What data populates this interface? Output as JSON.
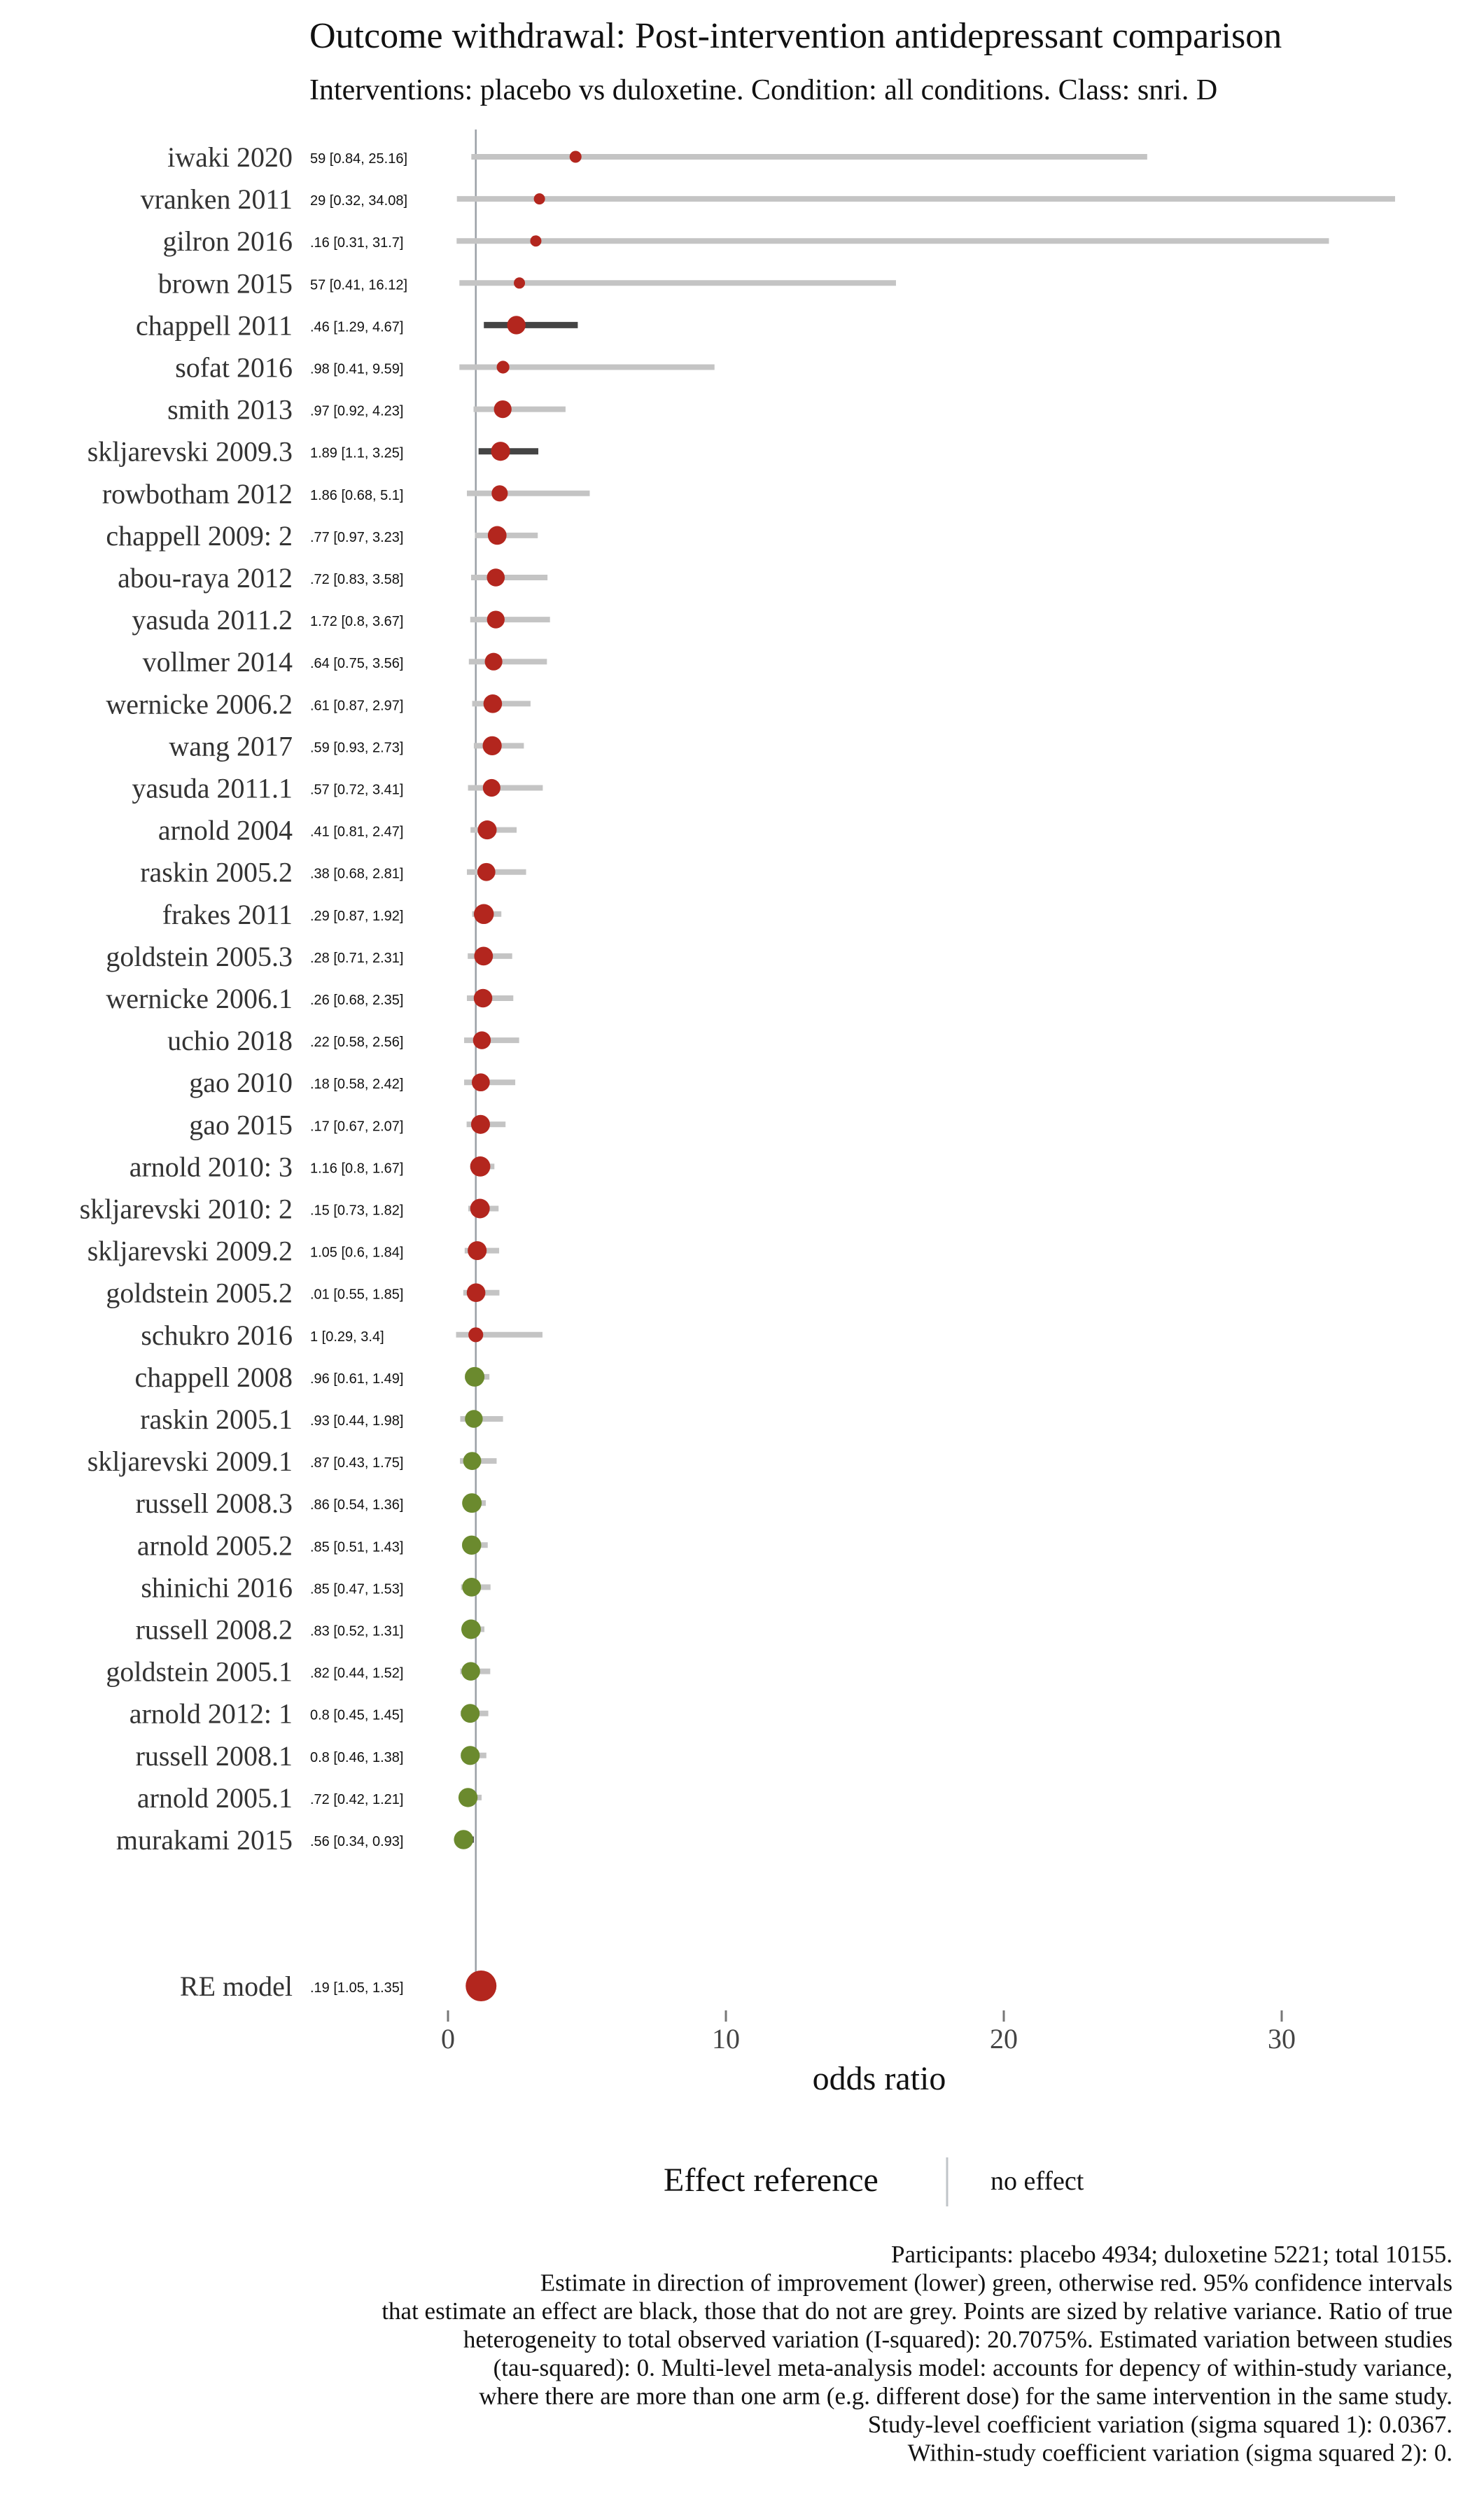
{
  "chart_data": {
    "type": "forest",
    "title": "Outcome withdrawal: Post-intervention antidepressant comparison",
    "subtitle": "Interventions: placebo vs duloxetine. Condition: all conditions. Class: snri. D",
    "xlabel": "odds ratio",
    "xlim": [
      -1,
      35
    ],
    "xticks": [
      0,
      10,
      20,
      30
    ],
    "reference_line": 1,
    "colors": {
      "harm": "#b3261e",
      "benefit": "#6b8a2e",
      "ci_significant": "#444444",
      "ci_nonsignificant": "#c4c4c4",
      "axis": "#777777",
      "reference": "#9aa0a6"
    },
    "studies": [
      {
        "study": "iwaki 2020",
        "or": 4.59,
        "lo": 0.84,
        "hi": 25.16,
        "label": "59 [0.84, 25.16]"
      },
      {
        "study": "vranken 2011",
        "or": 3.29,
        "lo": 0.32,
        "hi": 34.08,
        "label": "29 [0.32, 34.08]"
      },
      {
        "study": "gilron 2016",
        "or": 3.16,
        "lo": 0.31,
        "hi": 31.7,
        "label": ".16 [0.31, 31.7]"
      },
      {
        "study": "brown 2015",
        "or": 2.57,
        "lo": 0.41,
        "hi": 16.12,
        "label": "57 [0.41, 16.12]"
      },
      {
        "study": "chappell 2011",
        "or": 2.46,
        "lo": 1.29,
        "hi": 4.67,
        "label": ".46 [1.29, 4.67]"
      },
      {
        "study": "sofat 2016",
        "or": 1.98,
        "lo": 0.41,
        "hi": 9.59,
        "label": ".98 [0.41, 9.59]"
      },
      {
        "study": "smith 2013",
        "or": 1.97,
        "lo": 0.92,
        "hi": 4.23,
        "label": ".97 [0.92, 4.23]"
      },
      {
        "study": "skljarevski 2009.3",
        "or": 1.89,
        "lo": 1.1,
        "hi": 3.25,
        "label": "1.89 [1.1, 3.25]"
      },
      {
        "study": "rowbotham 2012",
        "or": 1.86,
        "lo": 0.68,
        "hi": 5.1,
        "label": "1.86 [0.68, 5.1]"
      },
      {
        "study": "chappell 2009: 2",
        "or": 1.77,
        "lo": 0.97,
        "hi": 3.23,
        "label": ".77 [0.97, 3.23]"
      },
      {
        "study": "abou-raya 2012",
        "or": 1.72,
        "lo": 0.83,
        "hi": 3.58,
        "label": ".72 [0.83, 3.58]"
      },
      {
        "study": "yasuda 2011.2",
        "or": 1.72,
        "lo": 0.8,
        "hi": 3.67,
        "label": "1.72 [0.8, 3.67]"
      },
      {
        "study": "vollmer 2014",
        "or": 1.64,
        "lo": 0.75,
        "hi": 3.56,
        "label": ".64 [0.75, 3.56]"
      },
      {
        "study": "wernicke 2006.2",
        "or": 1.61,
        "lo": 0.87,
        "hi": 2.97,
        "label": ".61 [0.87, 2.97]"
      },
      {
        "study": "wang 2017",
        "or": 1.59,
        "lo": 0.93,
        "hi": 2.73,
        "label": ".59 [0.93, 2.73]"
      },
      {
        "study": "yasuda 2011.1",
        "or": 1.57,
        "lo": 0.72,
        "hi": 3.41,
        "label": ".57 [0.72, 3.41]"
      },
      {
        "study": "arnold 2004",
        "or": 1.41,
        "lo": 0.81,
        "hi": 2.47,
        "label": ".41 [0.81, 2.47]"
      },
      {
        "study": "raskin 2005.2",
        "or": 1.38,
        "lo": 0.68,
        "hi": 2.81,
        "label": ".38 [0.68, 2.81]"
      },
      {
        "study": "frakes 2011",
        "or": 1.29,
        "lo": 0.87,
        "hi": 1.92,
        "label": ".29 [0.87, 1.92]"
      },
      {
        "study": "goldstein 2005.3",
        "or": 1.28,
        "lo": 0.71,
        "hi": 2.31,
        "label": ".28 [0.71, 2.31]"
      },
      {
        "study": "wernicke 2006.1",
        "or": 1.26,
        "lo": 0.68,
        "hi": 2.35,
        "label": ".26 [0.68, 2.35]"
      },
      {
        "study": "uchio 2018",
        "or": 1.22,
        "lo": 0.58,
        "hi": 2.56,
        "label": ".22 [0.58, 2.56]"
      },
      {
        "study": "gao 2010",
        "or": 1.18,
        "lo": 0.58,
        "hi": 2.42,
        "label": ".18 [0.58, 2.42]"
      },
      {
        "study": "gao 2015",
        "or": 1.17,
        "lo": 0.67,
        "hi": 2.07,
        "label": ".17 [0.67, 2.07]"
      },
      {
        "study": "arnold 2010: 3",
        "or": 1.16,
        "lo": 0.8,
        "hi": 1.67,
        "label": "1.16 [0.8, 1.67]"
      },
      {
        "study": "skljarevski 2010: 2",
        "or": 1.15,
        "lo": 0.73,
        "hi": 1.82,
        "label": ".15 [0.73, 1.82]"
      },
      {
        "study": "skljarevski 2009.2",
        "or": 1.05,
        "lo": 0.6,
        "hi": 1.84,
        "label": "1.05 [0.6, 1.84]"
      },
      {
        "study": "goldstein 2005.2",
        "or": 1.01,
        "lo": 0.55,
        "hi": 1.85,
        "label": ".01 [0.55, 1.85]"
      },
      {
        "study": "schukro 2016",
        "or": 1,
        "lo": 0.29,
        "hi": 3.4,
        "label": "1 [0.29, 3.4]"
      },
      {
        "study": "chappell 2008",
        "or": 0.96,
        "lo": 0.61,
        "hi": 1.49,
        "label": ".96 [0.61, 1.49]"
      },
      {
        "study": "raskin 2005.1",
        "or": 0.93,
        "lo": 0.44,
        "hi": 1.98,
        "label": ".93 [0.44, 1.98]"
      },
      {
        "study": "skljarevski 2009.1",
        "or": 0.87,
        "lo": 0.43,
        "hi": 1.75,
        "label": ".87 [0.43, 1.75]"
      },
      {
        "study": "russell 2008.3",
        "or": 0.86,
        "lo": 0.54,
        "hi": 1.36,
        "label": ".86 [0.54, 1.36]"
      },
      {
        "study": "arnold 2005.2",
        "or": 0.85,
        "lo": 0.51,
        "hi": 1.43,
        "label": ".85 [0.51, 1.43]"
      },
      {
        "study": "shinichi 2016",
        "or": 0.85,
        "lo": 0.47,
        "hi": 1.53,
        "label": ".85 [0.47, 1.53]"
      },
      {
        "study": "russell 2008.2",
        "or": 0.83,
        "lo": 0.52,
        "hi": 1.31,
        "label": ".83 [0.52, 1.31]"
      },
      {
        "study": "goldstein 2005.1",
        "or": 0.82,
        "lo": 0.44,
        "hi": 1.52,
        "label": ".82 [0.44, 1.52]"
      },
      {
        "study": "arnold 2012: 1",
        "or": 0.8,
        "lo": 0.45,
        "hi": 1.45,
        "label": "0.8 [0.45, 1.45]"
      },
      {
        "study": "russell 2008.1",
        "or": 0.8,
        "lo": 0.46,
        "hi": 1.38,
        "label": "0.8 [0.46, 1.38]"
      },
      {
        "study": "arnold 2005.1",
        "or": 0.72,
        "lo": 0.42,
        "hi": 1.21,
        "label": ".72 [0.42, 1.21]"
      },
      {
        "study": "murakami 2015",
        "or": 0.56,
        "lo": 0.34,
        "hi": 0.93,
        "label": ".56 [0.34, 0.93]"
      }
    ],
    "summary": {
      "study": "RE model",
      "or": 1.19,
      "lo": 1.05,
      "hi": 1.35,
      "label": ".19 [1.05, 1.35]"
    },
    "legend": {
      "title": "Effect reference",
      "item": "no effect",
      "placement": "bottom-center"
    },
    "caption": [
      "Participants: placebo 4934; duloxetine 5221; total 10155.",
      "Estimate in direction of improvement (lower) green, otherwise red. 95% confidence intervals",
      "that estimate an effect are black, those that do not are grey. Points are sized by relative variance. Ratio of true",
      "heterogeneity to total observed variation (I-squared): 20.7075%. Estimated variation between studies",
      "(tau-squared): 0. Multi-level meta-analysis model: accounts for depency of within-study variance,",
      "where there are more than one arm (e.g. different dose) for the same intervention in the same study.",
      "Study-level coefficient variation (sigma squared 1): 0.0367.",
      "Within-study coefficient variation (sigma squared 2): 0."
    ]
  }
}
